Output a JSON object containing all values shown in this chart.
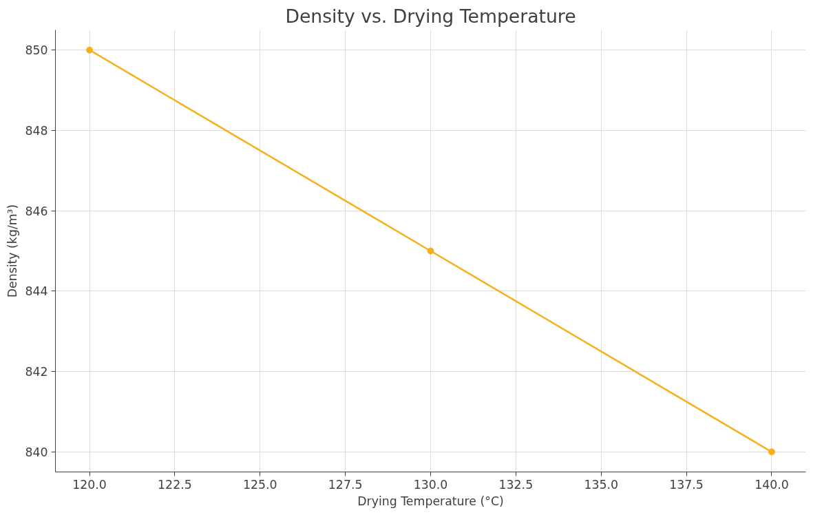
{
  "chart_data": {
    "type": "line",
    "title": "Density vs. Drying Temperature",
    "xlabel": "Drying Temperature (°C)",
    "ylabel": "Density (kg/m³)",
    "x": [
      120,
      130,
      140
    ],
    "series": [
      {
        "color": "#f5b01c",
        "values": [
          850,
          845,
          840
        ]
      }
    ],
    "xlim": [
      119,
      141
    ],
    "ylim": [
      839.5,
      850.5
    ],
    "xticks": [
      {
        "value": 120,
        "label": "120.0"
      },
      {
        "value": 122.5,
        "label": "122.5"
      },
      {
        "value": 125,
        "label": "125.0"
      },
      {
        "value": 127.5,
        "label": "127.5"
      },
      {
        "value": 130,
        "label": "130.0"
      },
      {
        "value": 132.5,
        "label": "132.5"
      },
      {
        "value": 135,
        "label": "135.0"
      },
      {
        "value": 137.5,
        "label": "137.5"
      },
      {
        "value": 140,
        "label": "140.0"
      }
    ],
    "yticks": [
      840,
      842,
      844,
      846,
      848,
      850
    ],
    "grid": true,
    "marker": "circle",
    "line_style": "solid"
  }
}
